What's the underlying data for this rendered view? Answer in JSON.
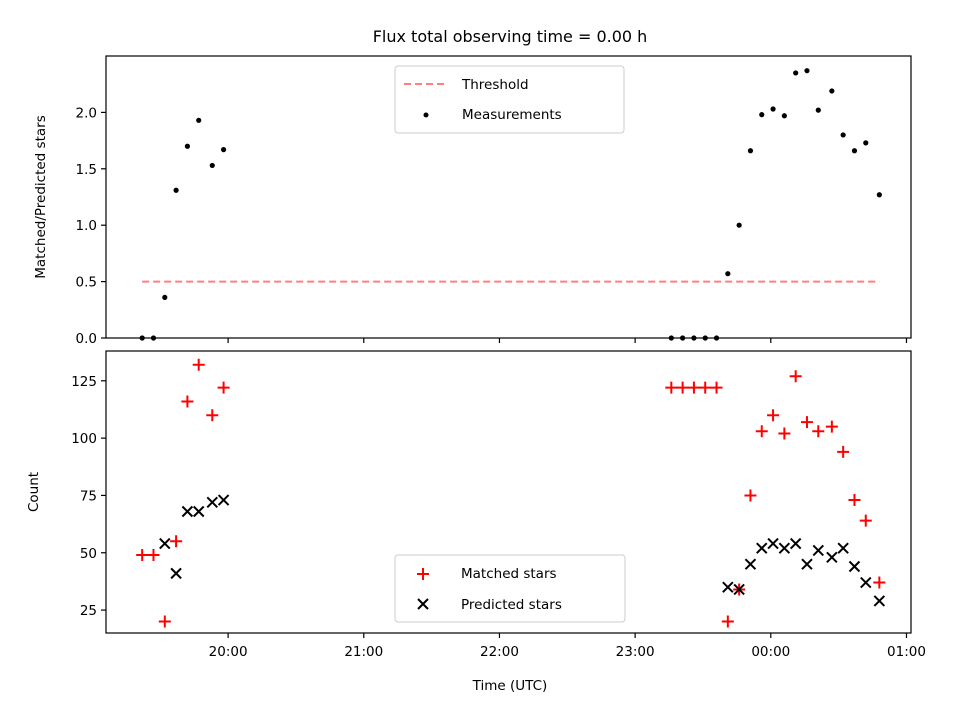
{
  "title": "Flux total observing time = 0.00 h",
  "colors": {
    "threshold": "#ff7f7f",
    "measurements": "#000000",
    "matched": "#ff0000",
    "predicted": "#000000"
  },
  "chart_data": [
    {
      "type": "scatter",
      "ylabel": "Matched/Predicted stars",
      "xlim": [
        "19:06",
        "01:02"
      ],
      "ylim": [
        0,
        2.5
      ],
      "yticks": [
        "0.0",
        "0.5",
        "1.0",
        "1.5",
        "2.0"
      ],
      "legend": {
        "position": "top-center",
        "entries": [
          "Threshold",
          "Measurements"
        ]
      },
      "threshold": {
        "name": "Threshold",
        "y": 0.5,
        "x_range": [
          "19:22",
          "00:48"
        ]
      },
      "series": [
        {
          "name": "Measurements",
          "x": [
            "19:22",
            "19:27",
            "19:32",
            "19:37",
            "19:42",
            "19:47",
            "19:53",
            "19:58",
            "23:16",
            "23:21",
            "23:26",
            "23:31",
            "23:36",
            "23:41",
            "23:46",
            "23:51",
            "23:56",
            "00:01",
            "00:06",
            "00:11",
            "00:16",
            "00:21",
            "00:27",
            "00:32",
            "00:37",
            "00:42",
            "00:48"
          ],
          "y": [
            0.0,
            0.0,
            0.36,
            1.31,
            1.7,
            1.93,
            1.53,
            1.67,
            0.0,
            0.0,
            0.0,
            0.0,
            0.0,
            0.57,
            1.0,
            1.66,
            1.98,
            2.03,
            1.97,
            2.35,
            2.37,
            2.02,
            2.19,
            1.8,
            1.66,
            1.73,
            1.27
          ]
        }
      ]
    },
    {
      "type": "scatter",
      "xlabel": "Time (UTC)",
      "ylabel": "Count",
      "xlim": [
        "19:06",
        "01:02"
      ],
      "ylim": [
        15,
        138
      ],
      "yticks": [
        "25",
        "50",
        "75",
        "100",
        "125"
      ],
      "xticks": [
        "20:00",
        "21:00",
        "22:00",
        "23:00",
        "00:00",
        "01:00"
      ],
      "legend": {
        "position": "bottom-center",
        "entries": [
          "Matched stars",
          "Predicted stars"
        ]
      },
      "series": [
        {
          "name": "Matched stars",
          "x": [
            "19:22",
            "19:27",
            "19:32",
            "19:37",
            "19:42",
            "19:47",
            "19:53",
            "19:58",
            "23:16",
            "23:21",
            "23:26",
            "23:31",
            "23:36",
            "23:41",
            "23:46",
            "23:51",
            "23:56",
            "00:01",
            "00:06",
            "00:11",
            "00:16",
            "00:21",
            "00:27",
            "00:32",
            "00:37",
            "00:42",
            "00:48"
          ],
          "y": [
            49,
            49,
            20,
            55,
            116,
            132,
            110,
            122,
            122,
            122,
            122,
            122,
            122,
            20,
            34,
            75,
            103,
            110,
            102,
            127,
            107,
            103,
            105,
            94,
            73,
            64,
            37
          ]
        },
        {
          "name": "Predicted stars",
          "x": [
            "19:32",
            "19:37",
            "19:42",
            "19:47",
            "19:53",
            "19:58",
            "23:41",
            "23:46",
            "23:51",
            "23:56",
            "00:01",
            "00:06",
            "00:11",
            "00:16",
            "00:21",
            "00:27",
            "00:32",
            "00:37",
            "00:42",
            "00:48"
          ],
          "y": [
            54,
            41,
            68,
            68,
            72,
            73,
            35,
            34,
            45,
            52,
            54,
            52,
            54,
            45,
            51,
            48,
            52,
            44,
            37,
            29
          ]
        }
      ]
    }
  ]
}
